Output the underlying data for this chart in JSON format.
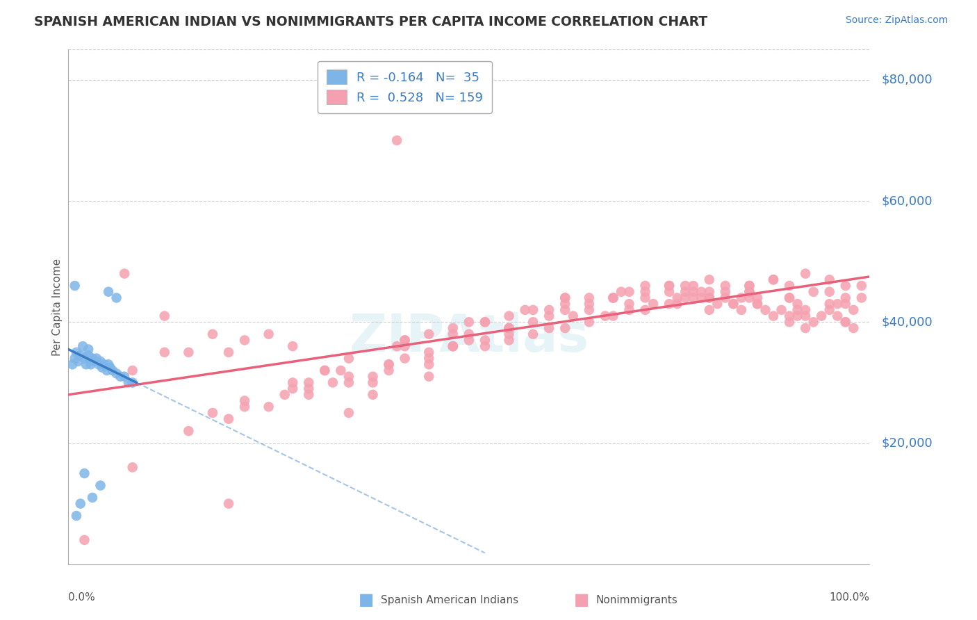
{
  "title": "SPANISH AMERICAN INDIAN VS NONIMMIGRANTS PER CAPITA INCOME CORRELATION CHART",
  "source": "Source: ZipAtlas.com",
  "ylabel": "Per Capita Income",
  "ytick_values": [
    20000,
    40000,
    60000,
    80000
  ],
  "ytick_right_labels": [
    "$80,000",
    "$60,000",
    "$40,000",
    "$20,000"
  ],
  "ytick_right_values": [
    80000,
    60000,
    40000,
    20000
  ],
  "ylim": [
    0,
    85000
  ],
  "xlim": [
    0,
    1.0
  ],
  "legend_blue_R": "-0.164",
  "legend_blue_N": "35",
  "legend_pink_R": "0.528",
  "legend_pink_N": "159",
  "blue_color": "#7EB5E8",
  "pink_color": "#F5A0B0",
  "blue_line_color": "#3A7CC4",
  "pink_line_color": "#E8607A",
  "background_color": "#ffffff",
  "grid_color": "#cccccc",
  "blue_scatter_x": [
    0.005,
    0.008,
    0.01,
    0.012,
    0.015,
    0.018,
    0.02,
    0.022,
    0.025,
    0.025,
    0.028,
    0.03,
    0.032,
    0.035,
    0.038,
    0.04,
    0.042,
    0.045,
    0.048,
    0.05,
    0.052,
    0.055,
    0.06,
    0.065,
    0.07,
    0.075,
    0.08,
    0.03,
    0.04,
    0.02,
    0.015,
    0.01,
    0.008,
    0.05,
    0.06
  ],
  "blue_scatter_y": [
    33000,
    34000,
    35000,
    33500,
    34500,
    36000,
    34000,
    33000,
    34500,
    35500,
    33000,
    34000,
    33500,
    34000,
    33000,
    33500,
    32500,
    33000,
    32000,
    33000,
    32500,
    32000,
    31500,
    31000,
    31000,
    30000,
    30000,
    11000,
    13000,
    15000,
    10000,
    8000,
    46000,
    45000,
    44000
  ],
  "pink_scatter_x": [
    0.02,
    0.07,
    0.12,
    0.08,
    0.15,
    0.18,
    0.12,
    0.2,
    0.22,
    0.25,
    0.28,
    0.3,
    0.32,
    0.35,
    0.38,
    0.4,
    0.42,
    0.45,
    0.48,
    0.5,
    0.52,
    0.55,
    0.58,
    0.6,
    0.62,
    0.65,
    0.68,
    0.7,
    0.72,
    0.75,
    0.78,
    0.8,
    0.82,
    0.85,
    0.88,
    0.9,
    0.92,
    0.95,
    0.97,
    0.99,
    0.99,
    0.98,
    0.97,
    0.96,
    0.95,
    0.94,
    0.93,
    0.92,
    0.91,
    0.9,
    0.89,
    0.88,
    0.87,
    0.86,
    0.85,
    0.84,
    0.83,
    0.82,
    0.81,
    0.8,
    0.79,
    0.78,
    0.77,
    0.76,
    0.3,
    0.35,
    0.4,
    0.45,
    0.5,
    0.55,
    0.6,
    0.65,
    0.7,
    0.75,
    0.8,
    0.85,
    0.9,
    0.95,
    0.18,
    0.22,
    0.28,
    0.32,
    0.42,
    0.48,
    0.52,
    0.58,
    0.62,
    0.68,
    0.72,
    0.77,
    0.42,
    0.48,
    0.55,
    0.62,
    0.68,
    0.75,
    0.82,
    0.88,
    0.93,
    0.97,
    0.08,
    0.35,
    0.45,
    0.2,
    0.55,
    0.62,
    0.68,
    0.75,
    0.8,
    0.85,
    0.9,
    0.95,
    0.38,
    0.45,
    0.52,
    0.58,
    0.65,
    0.72,
    0.78,
    0.85,
    0.91,
    0.96,
    0.3,
    0.38,
    0.45,
    0.52,
    0.6,
    0.67,
    0.73,
    0.8,
    0.86,
    0.92,
    0.97,
    0.25,
    0.33,
    0.4,
    0.48,
    0.55,
    0.63,
    0.7,
    0.77,
    0.84,
    0.91,
    0.97,
    0.15,
    0.22,
    0.28,
    0.35,
    0.42,
    0.5,
    0.57,
    0.65,
    0.72,
    0.79,
    0.86,
    0.92,
    0.98,
    0.2,
    0.27,
    0.34,
    0.41,
    0.48,
    0.55,
    0.62,
    0.69,
    0.76,
    0.83,
    0.9,
    0.41
  ],
  "pink_scatter_y": [
    4000,
    48000,
    35000,
    32000,
    35000,
    38000,
    41000,
    35000,
    37000,
    38000,
    36000,
    30000,
    32000,
    30000,
    28000,
    32000,
    36000,
    38000,
    36000,
    38000,
    40000,
    38000,
    40000,
    42000,
    44000,
    42000,
    44000,
    42000,
    44000,
    45000,
    46000,
    44000,
    45000,
    46000,
    47000,
    46000,
    48000,
    47000,
    46000,
    46000,
    44000,
    42000,
    44000,
    43000,
    42000,
    41000,
    40000,
    39000,
    41000,
    40000,
    42000,
    41000,
    42000,
    43000,
    44000,
    42000,
    43000,
    44000,
    43000,
    42000,
    44000,
    45000,
    44000,
    43000,
    29000,
    31000,
    33000,
    35000,
    37000,
    39000,
    41000,
    43000,
    45000,
    46000,
    47000,
    46000,
    44000,
    45000,
    25000,
    27000,
    29000,
    32000,
    37000,
    38000,
    40000,
    42000,
    44000,
    44000,
    45000,
    46000,
    34000,
    36000,
    39000,
    42000,
    44000,
    46000,
    46000,
    47000,
    45000,
    43000,
    16000,
    25000,
    31000,
    10000,
    37000,
    39000,
    41000,
    43000,
    44000,
    45000,
    44000,
    43000,
    30000,
    33000,
    36000,
    38000,
    40000,
    42000,
    44000,
    45000,
    43000,
    41000,
    28000,
    31000,
    34000,
    37000,
    39000,
    41000,
    43000,
    45000,
    44000,
    42000,
    40000,
    26000,
    30000,
    33000,
    36000,
    39000,
    41000,
    43000,
    45000,
    44000,
    42000,
    40000,
    22000,
    26000,
    30000,
    34000,
    37000,
    40000,
    42000,
    44000,
    46000,
    45000,
    43000,
    41000,
    39000,
    24000,
    28000,
    32000,
    36000,
    39000,
    41000,
    43000,
    45000,
    44000,
    43000,
    41000,
    70000
  ]
}
